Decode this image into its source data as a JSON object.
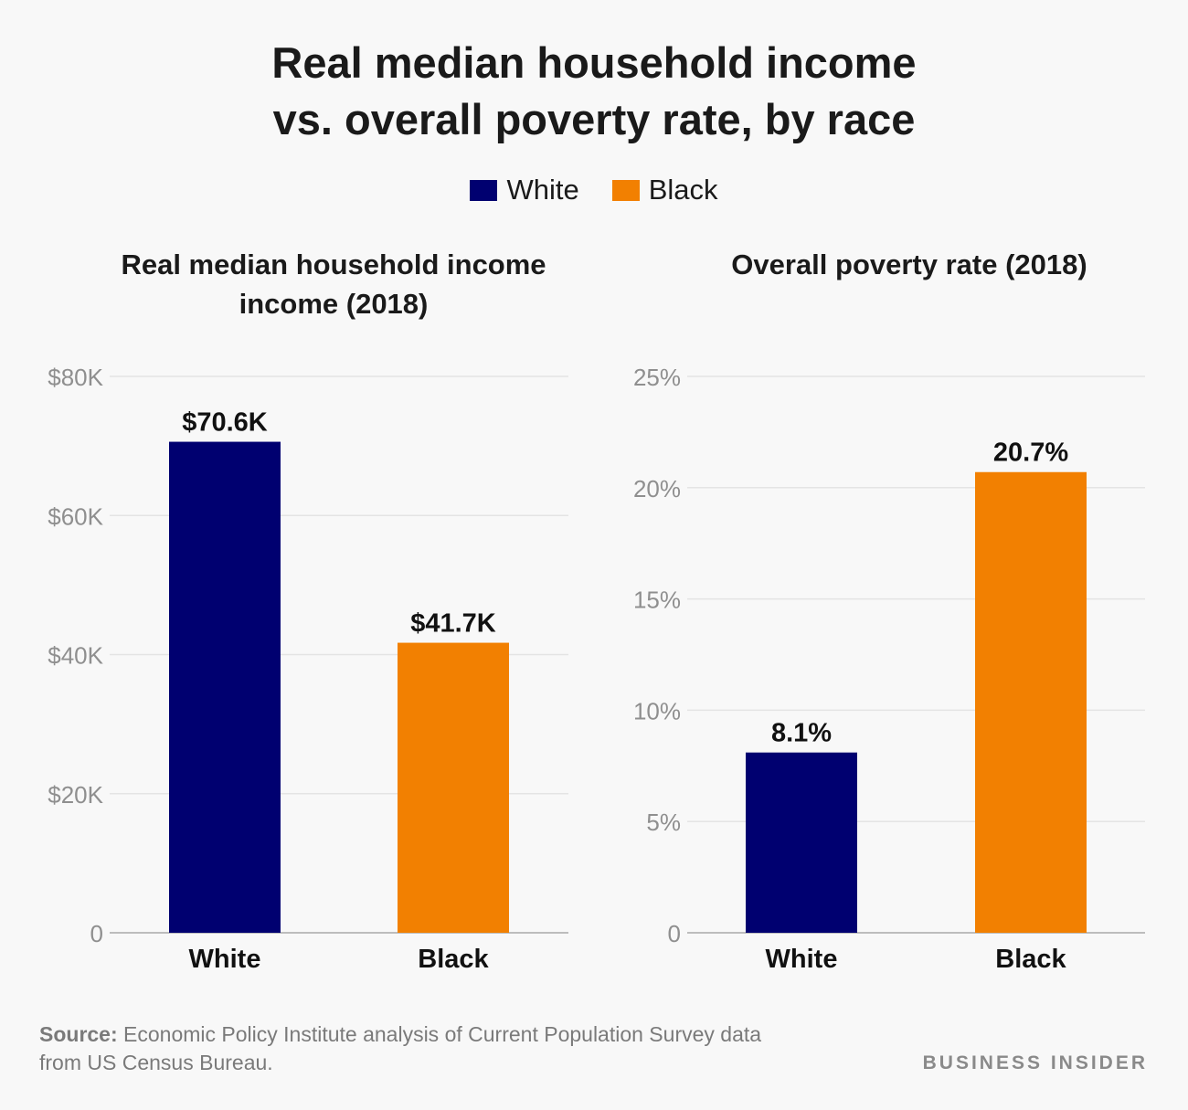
{
  "title_line1": "Real median household income",
  "title_line2": "vs. overall poverty rate, by race",
  "legend": [
    {
      "label": "White",
      "color": "#000070"
    },
    {
      "label": "Black",
      "color": "#f28001"
    }
  ],
  "chart_data": [
    {
      "type": "bar",
      "title_line1": "Real median household income",
      "title_line2": "income (2018)",
      "categories": [
        "White",
        "Black"
      ],
      "values": [
        70.6,
        41.7
      ],
      "value_labels": [
        "$70.6K",
        "$41.7K"
      ],
      "colors": [
        "#000070",
        "#f28001"
      ],
      "ylim": [
        0,
        80
      ],
      "yticks": [
        0,
        20,
        40,
        60,
        80
      ],
      "ytick_labels": [
        "0",
        "$20K",
        "$40K",
        "$60K",
        "$80K"
      ],
      "grid": true
    },
    {
      "type": "bar",
      "title_line1": "Overall poverty rate (2018)",
      "categories": [
        "White",
        "Black"
      ],
      "values": [
        8.1,
        20.7
      ],
      "value_labels": [
        "8.1%",
        "20.7%"
      ],
      "colors": [
        "#000070",
        "#f28001"
      ],
      "ylim": [
        0,
        25
      ],
      "yticks": [
        0,
        5,
        10,
        15,
        20,
        25
      ],
      "ytick_labels": [
        "0",
        "5%",
        "10%",
        "15%",
        "20%",
        "25%"
      ],
      "grid": true
    }
  ],
  "source_label": "Source:",
  "source_text": "Economic Policy Institute analysis of Current Population Survey data",
  "source_text2": "from US Census Bureau.",
  "brand": "BUSINESS INSIDER"
}
